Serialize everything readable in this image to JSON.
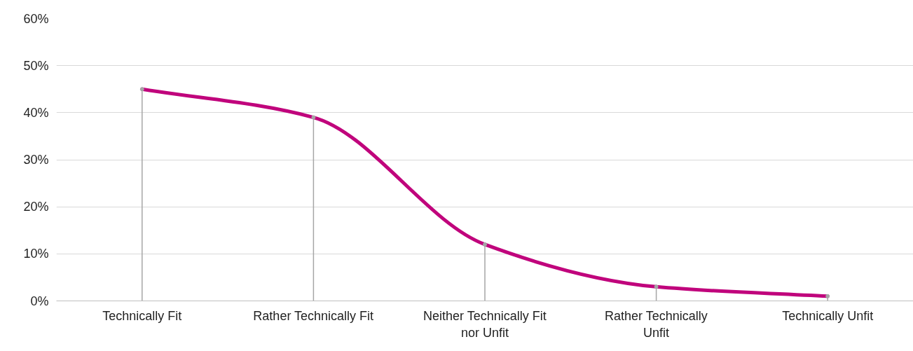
{
  "chart_data": {
    "type": "line",
    "categories": [
      "Technically Fit",
      "Rather Technically Fit",
      "Neither Technically Fit nor Unfit",
      "Rather Technically Unfit",
      "Technically Unfit"
    ],
    "series": [
      {
        "type": "lollipop",
        "color": "#a6a6a6",
        "marker": "circle",
        "values": [
          45,
          39,
          12,
          3,
          1
        ]
      },
      {
        "color": "#c0047c",
        "values": [
          45,
          39,
          12,
          3,
          1
        ]
      }
    ],
    "ylim": [
      0,
      60
    ],
    "yticks": [
      {
        "value": 0,
        "label": "0%"
      },
      {
        "value": 10,
        "label": "10%"
      },
      {
        "value": 20,
        "label": "20%"
      },
      {
        "value": 30,
        "label": "30%"
      },
      {
        "value": 40,
        "label": "40%"
      },
      {
        "value": 50,
        "label": "50%"
      },
      {
        "value": 60,
        "label": "60%"
      }
    ],
    "grid": "y",
    "marker": "none",
    "line_style": "solid"
  }
}
